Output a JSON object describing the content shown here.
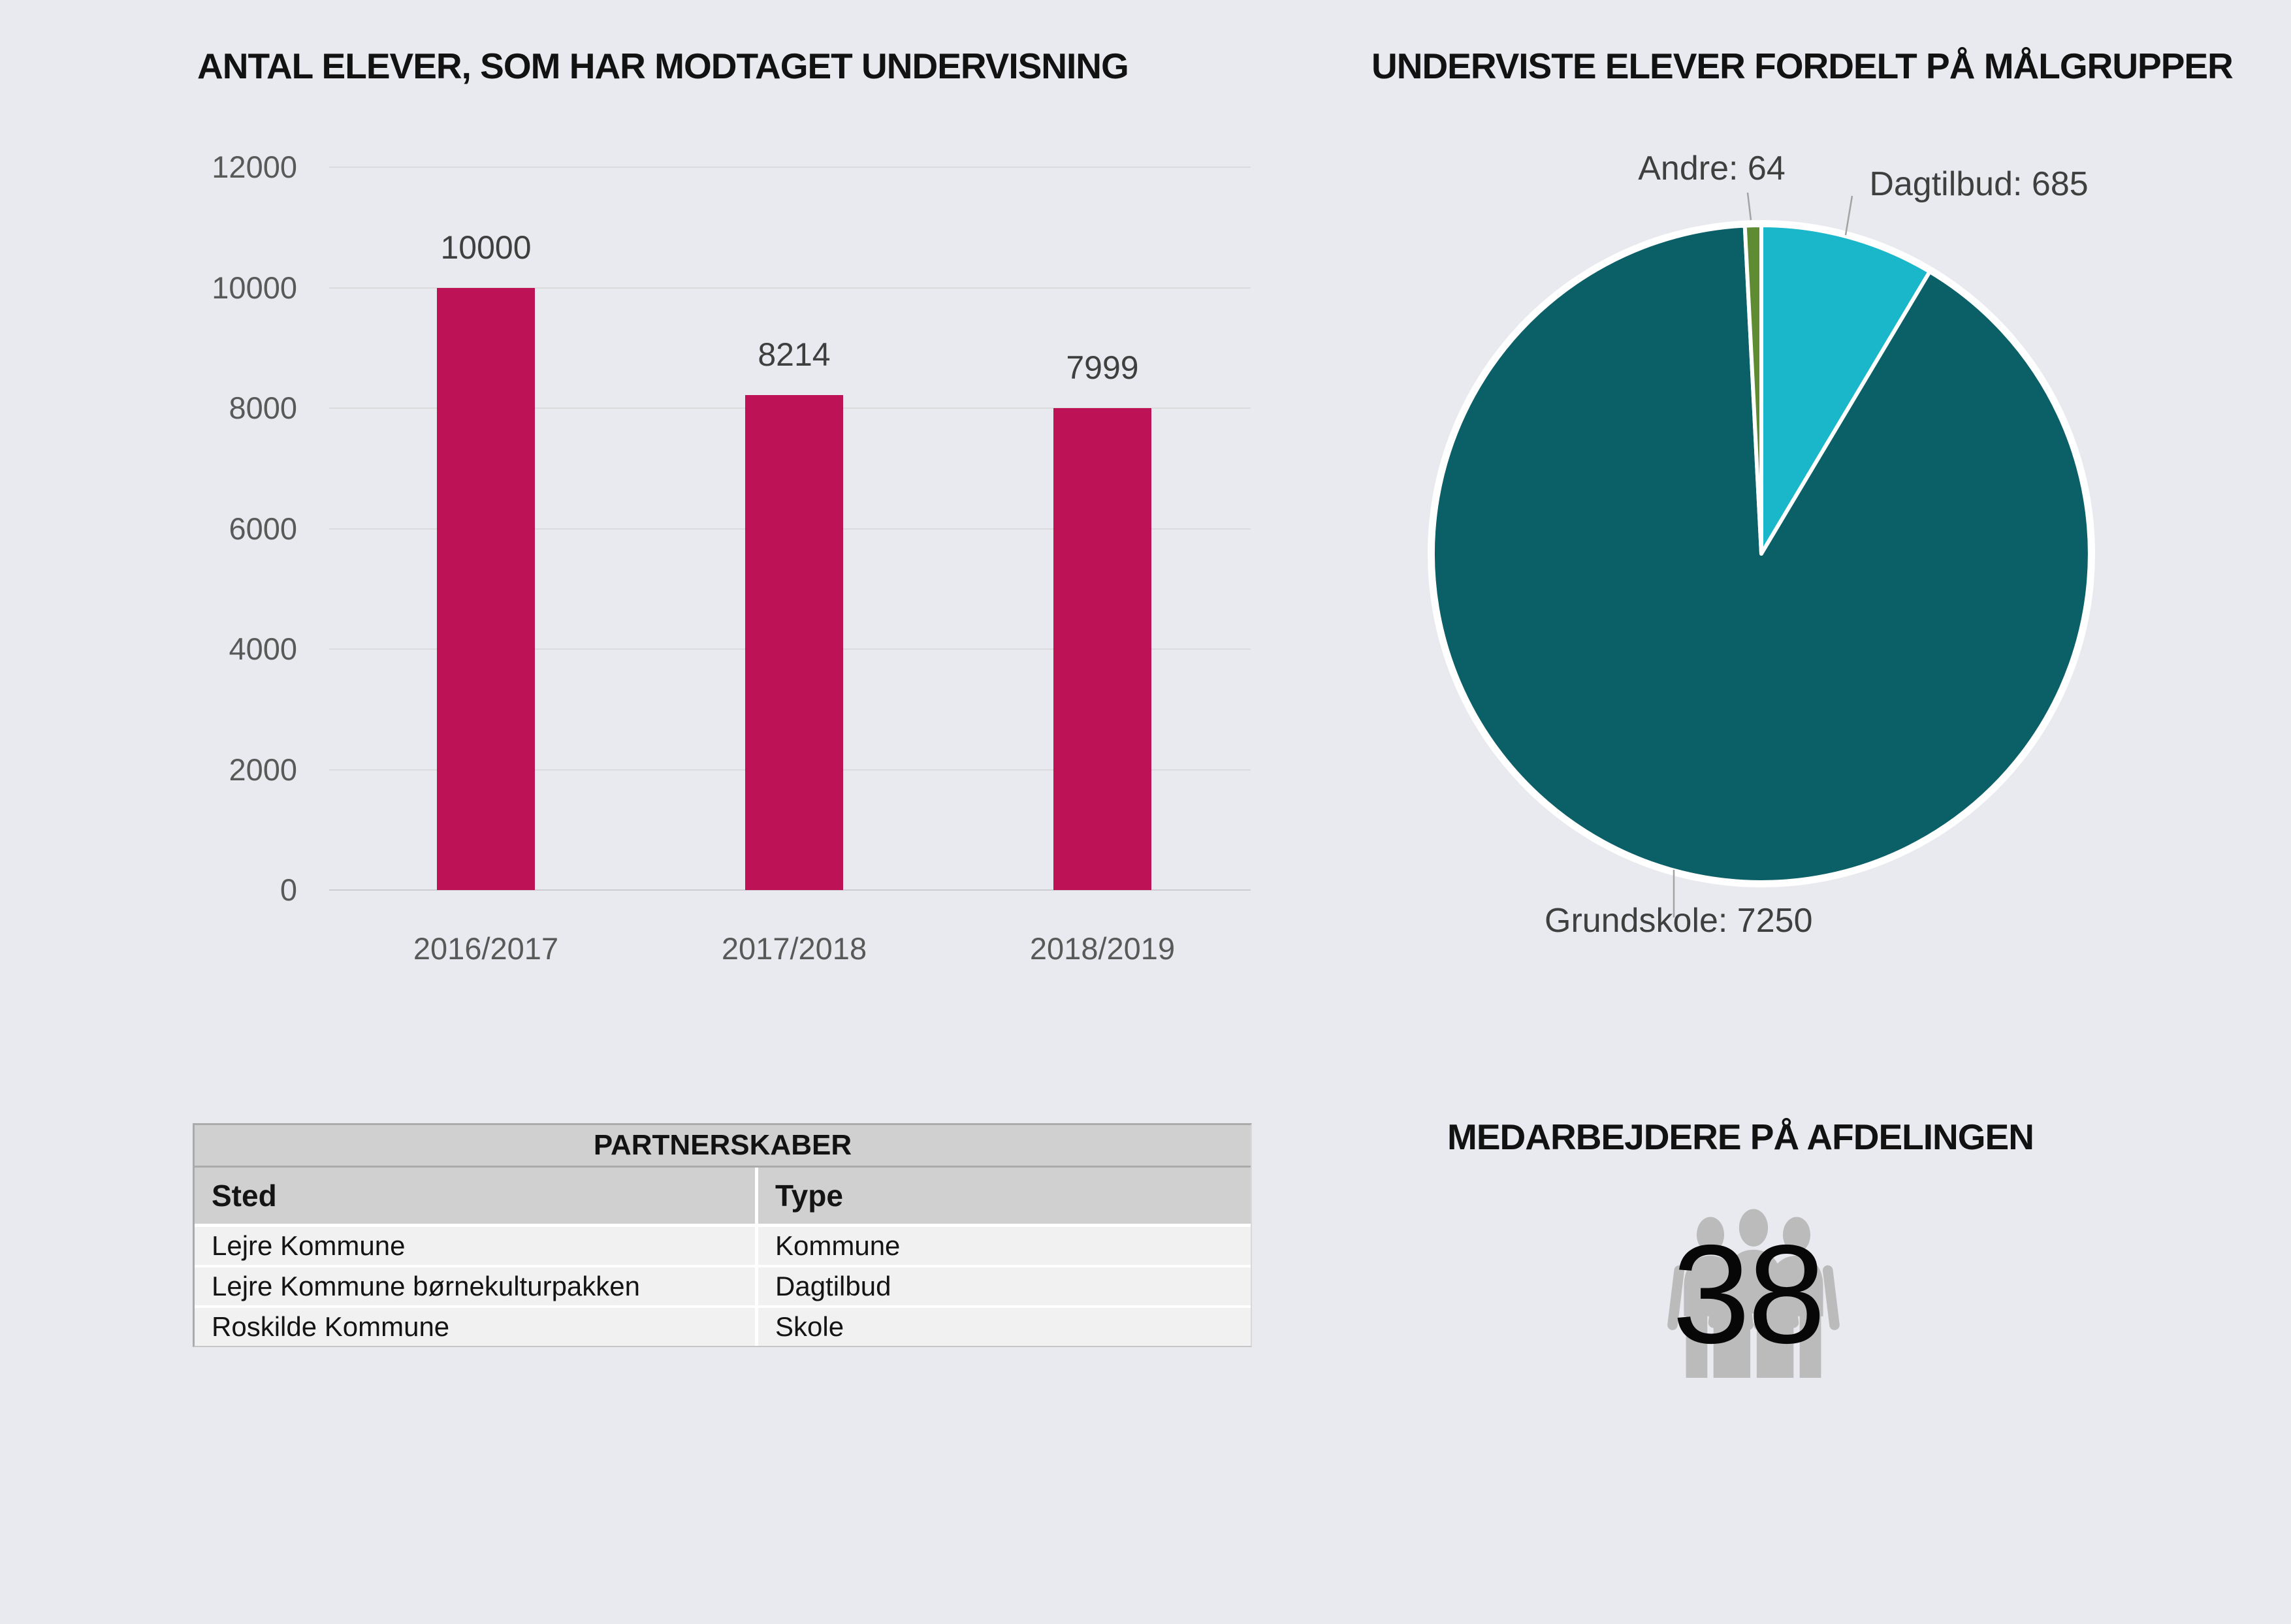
{
  "page": {
    "background": "#E9EAEF"
  },
  "chart_data": [
    {
      "type": "bar",
      "title": "ANTAL ELEVER, SOM HAR MODTAGET UNDERVISNING",
      "categories": [
        "2016/2017",
        "2017/2018",
        "2018/2019"
      ],
      "values": [
        10000,
        8214,
        7999
      ],
      "bar_color": "#BD1255",
      "xlabel": "",
      "ylabel": "",
      "ylim": [
        0,
        12000
      ],
      "y_ticks": [
        0,
        2000,
        4000,
        6000,
        8000,
        10000,
        12000
      ],
      "grid": "horizontal",
      "legend": "none",
      "data_labels": "above-bars"
    },
    {
      "type": "pie",
      "title": "UNDERVISTE ELEVER FORDELT PÅ MÅLGRUPPER",
      "slices": [
        {
          "label": "Dagtilbud",
          "value": 685,
          "color": "#1AB7CA",
          "callout": "Dagtilbud: 685"
        },
        {
          "label": "Grundskole",
          "value": 7250,
          "color": "#0B5F66",
          "callout": "Grundskole: 7250"
        },
        {
          "label": "Andre",
          "value": 64,
          "color": "#5F8C33",
          "callout": "Andre: 64"
        }
      ],
      "start_angle_deg": 0,
      "direction": "clockwise",
      "rim_color": "#FFFFFF",
      "legend": "callout-labels"
    }
  ],
  "partners_table": {
    "title": "PARTNERSKABER",
    "columns": [
      "Sted",
      "Type"
    ],
    "rows": [
      [
        "Lejre Kommune",
        "Kommune"
      ],
      [
        "Lejre Kommune børnekulturpakken",
        "Dagtilbud"
      ],
      [
        "Roskilde Kommune",
        "Skole"
      ]
    ]
  },
  "staff": {
    "title": "MEDARBEJDERE PÅ AFDELINGEN",
    "count": "38",
    "icon": "people-group-icon",
    "icon_color": "#BBBBBB"
  }
}
